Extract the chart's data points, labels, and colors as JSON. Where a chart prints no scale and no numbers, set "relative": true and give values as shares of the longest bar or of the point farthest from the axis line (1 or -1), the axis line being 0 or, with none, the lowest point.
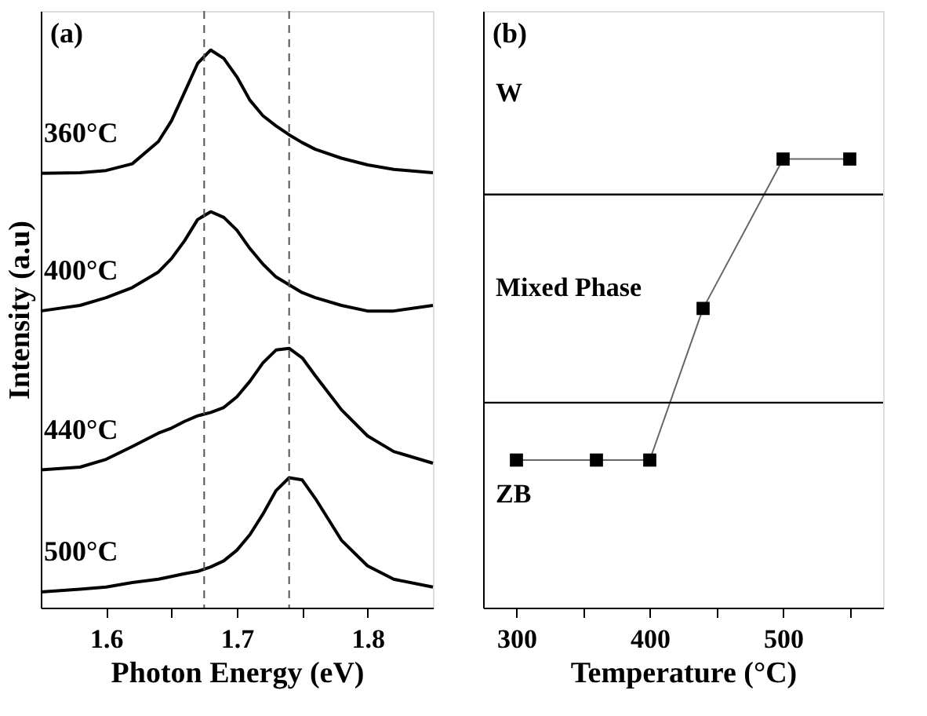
{
  "chart_data": [
    {
      "type": "line",
      "title": "(a)",
      "xlabel": "Photon Energy (eV)",
      "ylabel": "Intensity (a.u)",
      "relative": true,
      "tick_labels": "x",
      "grid": false,
      "legend": false,
      "marker": "none",
      "line_style": "solid",
      "x": [
        1.55,
        1.58,
        1.6,
        1.62,
        1.64,
        1.65,
        1.66,
        1.67,
        1.68,
        1.69,
        1.7,
        1.71,
        1.72,
        1.73,
        1.74,
        1.75,
        1.76,
        1.78,
        1.8,
        1.82,
        1.85
      ],
      "xlim": [
        1.55,
        1.85
      ],
      "xticks": [
        1.6,
        {
          "value": 1.65,
          "label": null
        },
        1.7,
        {
          "value": 1.75,
          "label": null
        },
        1.8
      ],
      "series": [
        {
          "name": "360°C",
          "color": "#000000",
          "values": [
            0.779,
            0.78,
            0.784,
            0.796,
            0.836,
            0.873,
            0.924,
            0.976,
            1.0,
            0.985,
            0.952,
            0.91,
            0.882,
            0.864,
            0.848,
            0.834,
            0.822,
            0.806,
            0.794,
            0.786,
            0.78
          ]
        },
        {
          "name": "400°C",
          "color": "#000000",
          "values": [
            0.532,
            0.542,
            0.556,
            0.574,
            0.602,
            0.626,
            0.658,
            0.696,
            0.71,
            0.7,
            0.677,
            0.644,
            0.616,
            0.593,
            0.579,
            0.565,
            0.556,
            0.542,
            0.532,
            0.532,
            0.542
          ]
        },
        {
          "name": "440°C",
          "color": "#000000",
          "values": [
            0.247,
            0.252,
            0.266,
            0.289,
            0.313,
            0.322,
            0.334,
            0.344,
            0.35,
            0.359,
            0.378,
            0.406,
            0.439,
            0.462,
            0.465,
            0.448,
            0.416,
            0.355,
            0.308,
            0.28,
            0.259
          ]
        },
        {
          "name": "500°C",
          "color": "#000000",
          "values": [
            0.028,
            0.033,
            0.037,
            0.045,
            0.051,
            0.056,
            0.061,
            0.065,
            0.073,
            0.084,
            0.103,
            0.131,
            0.168,
            0.21,
            0.233,
            0.229,
            0.196,
            0.121,
            0.075,
            0.051,
            0.037
          ]
        }
      ],
      "ref_lines": [
        {
          "axis": "x",
          "value": 1.675,
          "color": "#555555",
          "line_style": "dashed"
        },
        {
          "axis": "x",
          "value": 1.74,
          "color": "#555555",
          "line_style": "dashed"
        }
      ]
    },
    {
      "type": "line",
      "title": "(b)",
      "xlabel": "Temperature (°C)",
      "relative": true,
      "tick_labels": "x",
      "grid": false,
      "legend": false,
      "marker": "square",
      "line_style": "solid",
      "x": [
        300,
        360,
        400,
        440,
        500,
        550
      ],
      "xlim": [
        275,
        575
      ],
      "xticks": [
        300,
        {
          "value": 350,
          "label": null
        },
        400,
        {
          "value": 450,
          "label": null
        },
        500,
        {
          "value": 550,
          "label": null
        }
      ],
      "series": [
        {
          "color": "#000000",
          "values": [
            0.329,
            0.329,
            0.329,
            0.667,
            1.0,
            1.0
          ]
        }
      ],
      "ref_lines": [
        {
          "axis": "y",
          "value": 0.921,
          "color": "#000000",
          "line_style": "solid"
        },
        {
          "axis": "y",
          "value": 0.457,
          "color": "#000000",
          "line_style": "solid"
        }
      ],
      "annotations": [
        "W",
        "Mixed Phase",
        "ZB"
      ]
    }
  ]
}
